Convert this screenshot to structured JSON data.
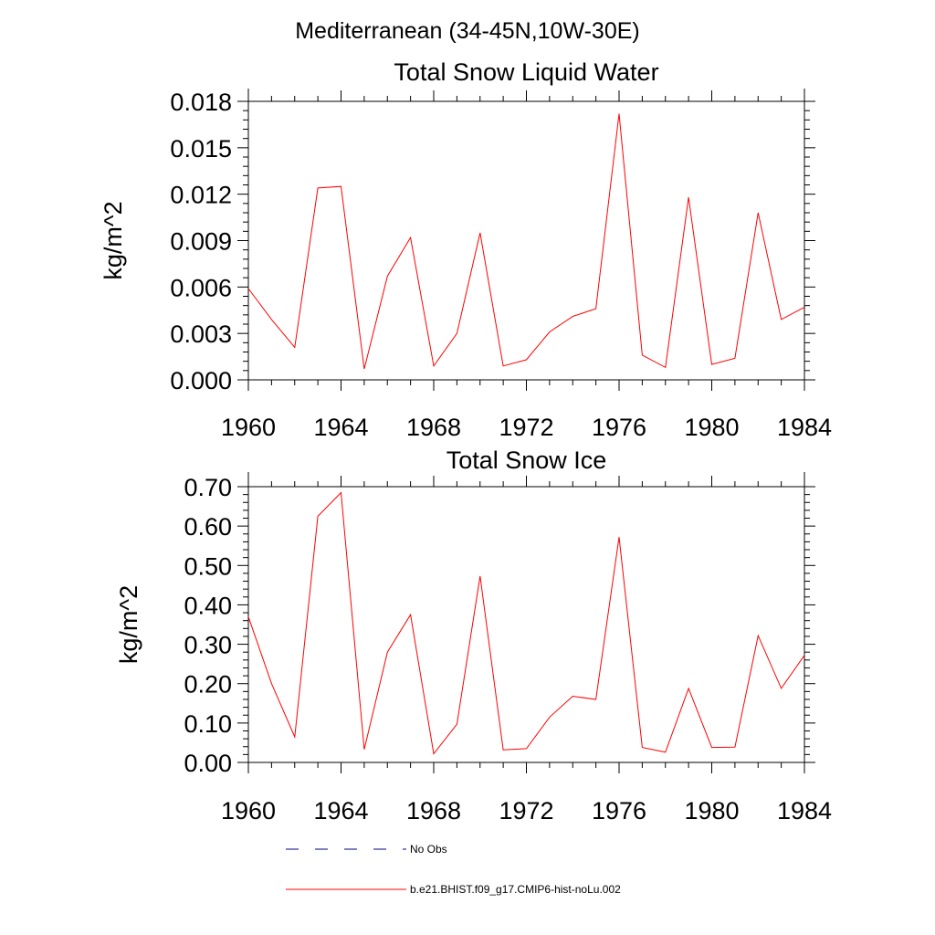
{
  "page": {
    "title": "Mediterranean (34-45N,10W-30E)"
  },
  "chart_data": [
    {
      "type": "line",
      "title": "Total Snow Liquid Water",
      "xlabel": "",
      "ylabel": "kg/m^2",
      "xlim": [
        1960,
        1984
      ],
      "ylim": [
        0,
        0.018
      ],
      "x_ticks": [
        1960,
        1964,
        1968,
        1972,
        1976,
        1980,
        1984
      ],
      "x_tick_labels": [
        "1960",
        "1964",
        "1968",
        "1972",
        "1976",
        "1980",
        "1984"
      ],
      "y_ticks": [
        0,
        0.003,
        0.006,
        0.009,
        0.012,
        0.015,
        0.018
      ],
      "y_tick_labels": [
        "0.000",
        "0.003",
        "0.006",
        "0.009",
        "0.012",
        "0.015",
        "0.018"
      ],
      "grid": false,
      "series": [
        {
          "name": "b.e21.BHIST.f09_g17.CMIP6-hist-noLu.002",
          "color": "#ff0000",
          "x": [
            1960,
            1961,
            1962,
            1963,
            1964,
            1965,
            1966,
            1967,
            1968,
            1969,
            1970,
            1971,
            1972,
            1973,
            1974,
            1975,
            1976,
            1977,
            1978,
            1979,
            1980,
            1981,
            1982,
            1983,
            1984
          ],
          "values": [
            0.0059,
            0.0039,
            0.0021,
            0.0124,
            0.0125,
            0.0007,
            0.0067,
            0.0092,
            0.0009,
            0.003,
            0.0095,
            0.0009,
            0.0013,
            0.0031,
            0.0041,
            0.0046,
            0.0172,
            0.0016,
            0.0008,
            0.0118,
            0.001,
            0.0014,
            0.0108,
            0.0039,
            0.0047
          ]
        }
      ]
    },
    {
      "type": "line",
      "title": "Total Snow Ice",
      "xlabel": "",
      "ylabel": "kg/m^2",
      "xlim": [
        1960,
        1984
      ],
      "ylim": [
        0,
        0.7
      ],
      "x_ticks": [
        1960,
        1964,
        1968,
        1972,
        1976,
        1980,
        1984
      ],
      "x_tick_labels": [
        "1960",
        "1964",
        "1968",
        "1972",
        "1976",
        "1980",
        "1984"
      ],
      "y_ticks": [
        0,
        0.1,
        0.2,
        0.3,
        0.4,
        0.5,
        0.6,
        0.7
      ],
      "y_tick_labels": [
        "0.00",
        "0.10",
        "0.20",
        "0.30",
        "0.40",
        "0.50",
        "0.60",
        "0.70"
      ],
      "grid": false,
      "series": [
        {
          "name": "b.e21.BHIST.f09_g17.CMIP6-hist-noLu.002",
          "color": "#ff0000",
          "x": [
            1960,
            1961,
            1962,
            1963,
            1964,
            1965,
            1966,
            1967,
            1968,
            1969,
            1970,
            1971,
            1972,
            1973,
            1974,
            1975,
            1976,
            1977,
            1978,
            1979,
            1980,
            1981,
            1982,
            1983,
            1984
          ],
          "values": [
            0.37,
            0.2,
            0.065,
            0.625,
            0.685,
            0.033,
            0.28,
            0.375,
            0.022,
            0.097,
            0.473,
            0.032,
            0.035,
            0.115,
            0.168,
            0.16,
            0.572,
            0.038,
            0.026,
            0.188,
            0.038,
            0.039,
            0.322,
            0.188,
            0.272
          ]
        }
      ]
    }
  ],
  "legend": {
    "placement": "bottom",
    "items": [
      {
        "label": "No Obs",
        "color": "#000080",
        "style": "dashed"
      },
      {
        "label": "b.e21.BHIST.f09_g17.CMIP6-hist-noLu.002",
        "color": "#ff0000",
        "style": "solid"
      }
    ]
  }
}
